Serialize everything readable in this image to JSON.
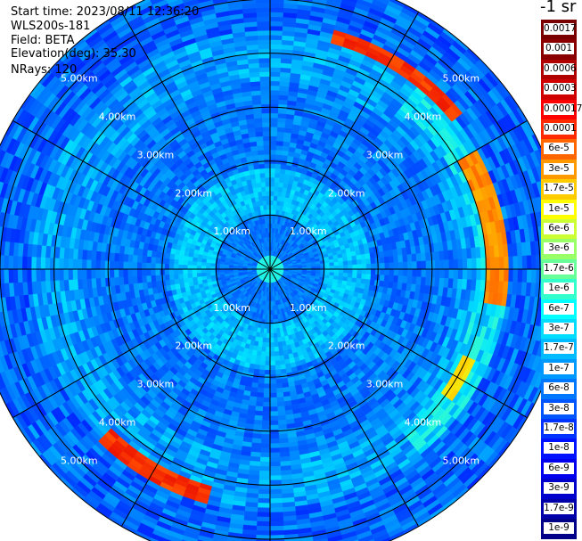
{
  "header": {
    "start_time": "Start time: 2023/08/11 12:36:20",
    "instrument": "WLS200s-181",
    "field": "Field: BETA",
    "elevation": "Elevation(deg): 35.30",
    "nrays": "NRays: 120"
  },
  "colorbar": {
    "unit": "-1 sr",
    "labels": [
      "0.0017",
      "0.001",
      "0.0006",
      "0.0003",
      "0.00017",
      "0.0001",
      "6e-5",
      "3e-5",
      "1.7e-5",
      "1e-5",
      "6e-6",
      "3e-6",
      "1.7e-6",
      "1e-6",
      "6e-7",
      "3e-7",
      "1.7e-7",
      "1e-7",
      "6e-8",
      "3e-8",
      "1.7e-8",
      "1e-8",
      "6e-9",
      "3e-9",
      "1.7e-9",
      "1e-9"
    ],
    "colors": [
      "#7a0000",
      "#8a0000",
      "#b00000",
      "#d00000",
      "#ff0000",
      "#ff2a00",
      "#ff6600",
      "#ff9900",
      "#ffcc00",
      "#ffff00",
      "#ccff33",
      "#99ff66",
      "#66ff99",
      "#33ffcc",
      "#00ffff",
      "#00ddff",
      "#00bbff",
      "#0099ff",
      "#0077ff",
      "#0055ff",
      "#0033ff",
      "#0011ff",
      "#0000ee",
      "#0000cc",
      "#0000aa",
      "#000088"
    ]
  },
  "chart_data": {
    "type": "heatmap",
    "projection": "polar PPI scan",
    "field": "BETA",
    "unit": "sr^-1",
    "scale": "log",
    "nrays": 120,
    "elevation_deg": 35.3,
    "max_range_km": 5.5,
    "range_rings_km": [
      1.0,
      2.0,
      3.0,
      4.0,
      5.0
    ],
    "ring_labels": [
      "1.00km",
      "2.00km",
      "3.00km",
      "4.00km",
      "5.00km"
    ],
    "radial_spokes_deg": [
      0,
      30,
      60,
      90,
      120,
      150,
      180,
      210,
      240,
      270,
      300,
      330
    ],
    "features": [
      {
        "description_label": "",
        "range_km": [
          4.3,
          4.6
        ],
        "azimuth_deg": [
          15,
          50
        ],
        "beta": 3e-05
      },
      {
        "description_label": "",
        "range_km": [
          4.0,
          4.4
        ],
        "azimuth_deg": [
          60,
          100
        ],
        "beta": 1e-05
      },
      {
        "description_label": "",
        "range_km": [
          3.9,
          4.2
        ],
        "azimuth_deg": [
          115,
          125
        ],
        "beta": 3e-06
      },
      {
        "description_label": "",
        "range_km": [
          4.2,
          4.5
        ],
        "azimuth_deg": [
          195,
          225
        ],
        "beta": 3e-05
      }
    ]
  }
}
